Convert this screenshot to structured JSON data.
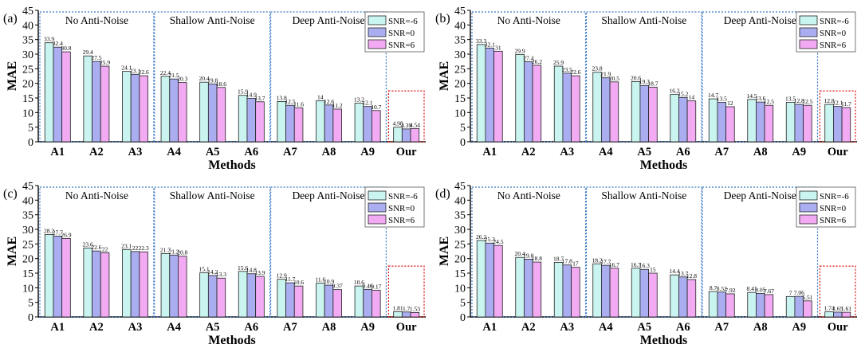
{
  "chart_data": [
    {
      "type": "bar",
      "panel_label": "(a)",
      "categories": [
        "A1",
        "A2",
        "A3",
        "A4",
        "A5",
        "A6",
        "A7",
        "A8",
        "A9",
        "Our"
      ],
      "xlabel": "Methods",
      "ylabel": "MAE",
      "ylim": [
        0,
        45
      ],
      "yticks": [
        "0",
        "5",
        "10",
        "15",
        "20",
        "25",
        "30",
        "35",
        "40",
        "45"
      ],
      "grid": false,
      "legend_position": "top-right",
      "groups": [
        "No Anti-Noise",
        "Shallow Anti-Noise",
        "Deep Anti-Noise"
      ],
      "series": [
        {
          "name": "SNR=-6",
          "values": [
            33.9,
            29.4,
            24.1,
            22.4,
            20.4,
            15.9,
            13.8,
            14,
            13.2,
            4.98
          ],
          "labels": [
            "33.9",
            "29.4",
            "24.1",
            "22.4",
            "20.4",
            "15.9",
            "13.8",
            "14",
            "13.2",
            "4.98"
          ]
        },
        {
          "name": "SNR=0",
          "values": [
            32.4,
            27.5,
            23.1,
            21.5,
            19.8,
            14.9,
            12.5,
            12.6,
            12.1,
            4.39
          ],
          "labels": [
            "32.4",
            "27.5",
            "23.1",
            "21.5",
            "19.8",
            "14.9",
            "12.5",
            "12.6",
            "12.1",
            "4.39"
          ]
        },
        {
          "name": "SNR=6",
          "values": [
            30.8,
            25.9,
            22.6,
            20.3,
            18.6,
            13.7,
            11.6,
            11.2,
            10.7,
            4.54
          ],
          "labels": [
            "30.8",
            "25.9",
            "22.6",
            "20.3",
            "18.6",
            "13.7",
            "11.6",
            "11.2",
            "10.7",
            "4.54"
          ]
        }
      ]
    },
    {
      "type": "bar",
      "panel_label": "(b)",
      "categories": [
        "A1",
        "A2",
        "A3",
        "A4",
        "A5",
        "A6",
        "A7",
        "A8",
        "A9",
        "Our"
      ],
      "xlabel": "Methods",
      "ylabel": "MAE",
      "ylim": [
        0,
        45
      ],
      "yticks": [
        "0",
        "5",
        "10",
        "15",
        "20",
        "25",
        "30",
        "35",
        "40",
        "45"
      ],
      "grid": false,
      "legend_position": "top-right",
      "groups": [
        "No Anti-Noise",
        "Shallow Anti-Noise",
        "Deep Anti-Noise"
      ],
      "series": [
        {
          "name": "SNR=-6",
          "values": [
            33.3,
            29.9,
            25.9,
            23.8,
            20.6,
            16.2,
            14.7,
            14.5,
            13.5,
            12.8
          ],
          "labels": [
            "33.3",
            "29.9",
            "25.9",
            "23.8",
            "20.6",
            "16.2",
            "14.7",
            "14.5",
            "13.5",
            "12.8"
          ]
        },
        {
          "name": "SNR=0",
          "values": [
            32.1,
            27.4,
            23.5,
            21.9,
            19.3,
            15.2,
            13.5,
            13.6,
            12.8,
            12.1
          ],
          "labels": [
            "32.1",
            "27.4",
            "23.5",
            "21.9",
            "19.3",
            "15.2",
            "13.5",
            "13.6",
            "12.8",
            "12.1"
          ]
        },
        {
          "name": "SNR=6",
          "values": [
            31,
            26.2,
            22.6,
            20.5,
            18.7,
            14,
            12,
            12.5,
            12.5,
            11.7
          ],
          "labels": [
            "31",
            "26.2",
            "22.6",
            "20.5",
            "18.7",
            "14",
            "12",
            "12.5",
            "12.5",
            "11.7"
          ]
        }
      ]
    },
    {
      "type": "bar",
      "panel_label": "(c)",
      "categories": [
        "A1",
        "A2",
        "A3",
        "A4",
        "A5",
        "A6",
        "A7",
        "A8",
        "A9",
        "Our"
      ],
      "xlabel": "Methods",
      "ylabel": "MAE",
      "ylim": [
        0,
        45
      ],
      "yticks": [
        "0",
        "5",
        "10",
        "15",
        "20",
        "25",
        "30",
        "35",
        "40",
        "45"
      ],
      "grid": false,
      "legend_position": "top-right",
      "groups": [
        "No Anti-Noise",
        "Shallow Anti-Noise",
        "Deep Anti-Noise"
      ],
      "series": [
        {
          "name": "SNR=-6",
          "values": [
            28.2,
            23.6,
            23.1,
            21.7,
            15.1,
            15.6,
            12.9,
            11.6,
            10.6,
            1.81
          ],
          "labels": [
            "28.2",
            "23.6",
            "23.1",
            "21.7",
            "15.1",
            "15.6",
            "12.9",
            "11.6",
            "10.6",
            "1.81"
          ]
        },
        {
          "name": "SNR=0",
          "values": [
            27.7,
            22.6,
            22.4,
            21.2,
            14.2,
            14.8,
            11.7,
            10.9,
            9.46,
            1.7
          ],
          "labels": [
            "27.7",
            "22.6",
            "22",
            "21.2",
            "14.2",
            "14.8",
            "11.7",
            "10.9",
            "9.46",
            "1.7"
          ]
        },
        {
          "name": "SNR=6",
          "values": [
            26.9,
            22,
            22.3,
            20.8,
            13.3,
            13.9,
            10.6,
            9.37,
            9.17,
            1.53
          ],
          "labels": [
            "26.9",
            "22",
            "22.3",
            "20.8",
            "13.3",
            "13.9",
            "10.6",
            "9.37",
            "9.17",
            "1.53"
          ]
        }
      ]
    },
    {
      "type": "bar",
      "panel_label": "(d)",
      "categories": [
        "A1",
        "A2",
        "A3",
        "A4",
        "A5",
        "A6",
        "A7",
        "A8",
        "A9",
        "Our"
      ],
      "xlabel": "Methods",
      "ylabel": "MAE",
      "ylim": [
        0,
        45
      ],
      "yticks": [
        "0",
        "5",
        "10",
        "15",
        "20",
        "25",
        "30",
        "35",
        "40",
        "45"
      ],
      "grid": false,
      "legend_position": "top-right",
      "groups": [
        "No Anti-Noise",
        "Shallow Anti-Noise",
        "Deep Anti-Noise"
      ],
      "series": [
        {
          "name": "SNR=-6",
          "values": [
            26.2,
            20.4,
            18.7,
            18.2,
            16.7,
            14.4,
            8.7,
            8.41,
            7,
            1.74
          ],
          "labels": [
            "26.2",
            "20.4",
            "18.7",
            "18.2",
            "16.7",
            "14.4",
            "8.7",
            "8.41",
            "7",
            "1.74"
          ]
        },
        {
          "name": "SNR=0",
          "values": [
            25.3,
            19.8,
            17.8,
            17.7,
            16.3,
            13.7,
            8.52,
            8.05,
            7.06,
            1.65
          ],
          "labels": [
            "25.3",
            "19.8",
            "17.8",
            "17.7",
            "16.3",
            "13.7",
            "8.52",
            "8.05",
            "7.06",
            "1.65"
          ]
        },
        {
          "name": "SNR=6",
          "values": [
            24.5,
            18.8,
            17,
            16.7,
            15,
            12.8,
            7.92,
            7.67,
            5.51,
            1.61
          ],
          "labels": [
            "24.5",
            "18.8",
            "17",
            "16.7",
            "15",
            "12.8",
            "7.92",
            "7.67",
            "5.51",
            "1.61"
          ]
        }
      ]
    }
  ],
  "colors": {
    "series": [
      "#c9f4ef",
      "#aaaef0",
      "#f2aaf2"
    ],
    "group_box": "#3a78c2",
    "our_box": "#e02020"
  }
}
